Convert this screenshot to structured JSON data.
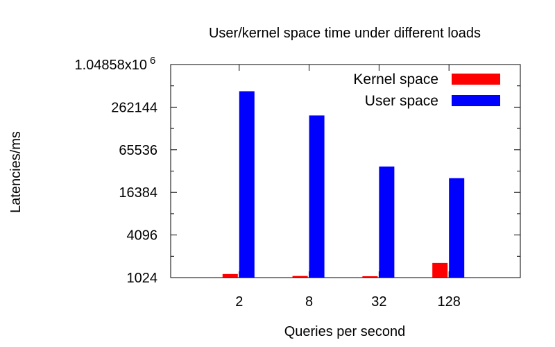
{
  "chart_data": {
    "type": "bar",
    "title": "User/kernel space time under different loads",
    "xlabel": "Queries per second",
    "ylabel": "Latencies/ms",
    "y_scale": "log2",
    "ylim": [
      1024,
      1048576
    ],
    "yticks": [
      {
        "value": 1024,
        "label": "1024"
      },
      {
        "value": 4096,
        "label": "4096"
      },
      {
        "value": 16384,
        "label": "16384"
      },
      {
        "value": 65536,
        "label": "65536"
      },
      {
        "value": 262144,
        "label": "262144"
      },
      {
        "value": 1048576,
        "label": "1.04858x10",
        "exp": "6"
      }
    ],
    "categories": [
      "2",
      "8",
      "32",
      "128"
    ],
    "series": [
      {
        "name": "Kernel space",
        "color": "#ff0000",
        "values": [
          1150,
          1080,
          1070,
          1650
        ]
      },
      {
        "name": "User space",
        "color": "#0000ff",
        "values": [
          440000,
          200000,
          38000,
          26000
        ]
      }
    ],
    "legend_position": "top-right",
    "grid": false
  }
}
